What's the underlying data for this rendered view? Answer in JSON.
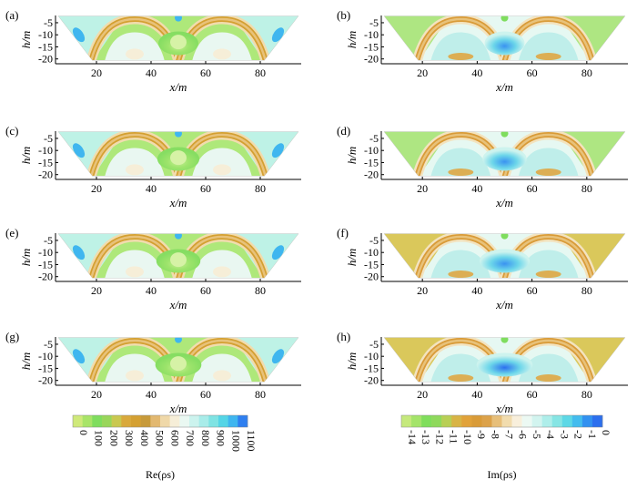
{
  "panels": [
    {
      "label": "(a)",
      "kind": "real",
      "sharpness": 1.0
    },
    {
      "label": "(b)",
      "kind": "imag",
      "sharpness": 1.0
    },
    {
      "label": "(c)",
      "kind": "real",
      "sharpness": 1.05
    },
    {
      "label": "(d)",
      "kind": "imag",
      "sharpness": 1.1
    },
    {
      "label": "(e)",
      "kind": "real",
      "sharpness": 1.1
    },
    {
      "label": "(f)",
      "kind": "imag",
      "sharpness": 1.25
    },
    {
      "label": "(g)",
      "kind": "real",
      "sharpness": 1.15
    },
    {
      "label": "(h)",
      "kind": "imag",
      "sharpness": 1.4
    }
  ],
  "axes": {
    "xlabel": "x/m",
    "ylabel": "h/m",
    "xticks": [
      "20",
      "40",
      "60",
      "80"
    ],
    "yticks": [
      "-5",
      "-10",
      "-15",
      "-20"
    ],
    "xrange": [
      5,
      95
    ],
    "yrange": [
      -2,
      -22
    ]
  },
  "colorbar_real": {
    "label": "Re(ρs)",
    "ticks": [
      "0",
      "100",
      "200",
      "300",
      "400",
      "500",
      "600",
      "700",
      "800",
      "900",
      "1000",
      "1100"
    ],
    "colors": [
      "#cfe97a",
      "#a8e468",
      "#7fdd5e",
      "#99d65a",
      "#c9c850",
      "#d9a93c",
      "#d4a032",
      "#c79a3a",
      "#e2b870",
      "#efd8a8",
      "#f6eed8",
      "#eaf8f2",
      "#ccf3ee",
      "#a8ece9",
      "#7fe3e3",
      "#55d5e6",
      "#3fb6ef",
      "#2f7ff0"
    ]
  },
  "colorbar_imag": {
    "label": "Im(ρs)",
    "ticks": [
      "-14",
      "-13",
      "-12",
      "-11",
      "-10",
      "-9",
      "-8",
      "-7",
      "-6",
      "-5",
      "-4",
      "-3",
      "-2",
      "-1",
      "0"
    ],
    "colors": [
      "#c5e97c",
      "#a4e46a",
      "#80de5c",
      "#8fd95c",
      "#b8cf55",
      "#d8b445",
      "#e1a23a",
      "#d99b38",
      "#dca24a",
      "#e7bf7a",
      "#f1dcae",
      "#f8efdc",
      "#ecf9f3",
      "#d2f4ef",
      "#aeeeea",
      "#86e5e4",
      "#5dd8e6",
      "#43bcee",
      "#3291f0",
      "#2c6fee"
    ]
  }
}
